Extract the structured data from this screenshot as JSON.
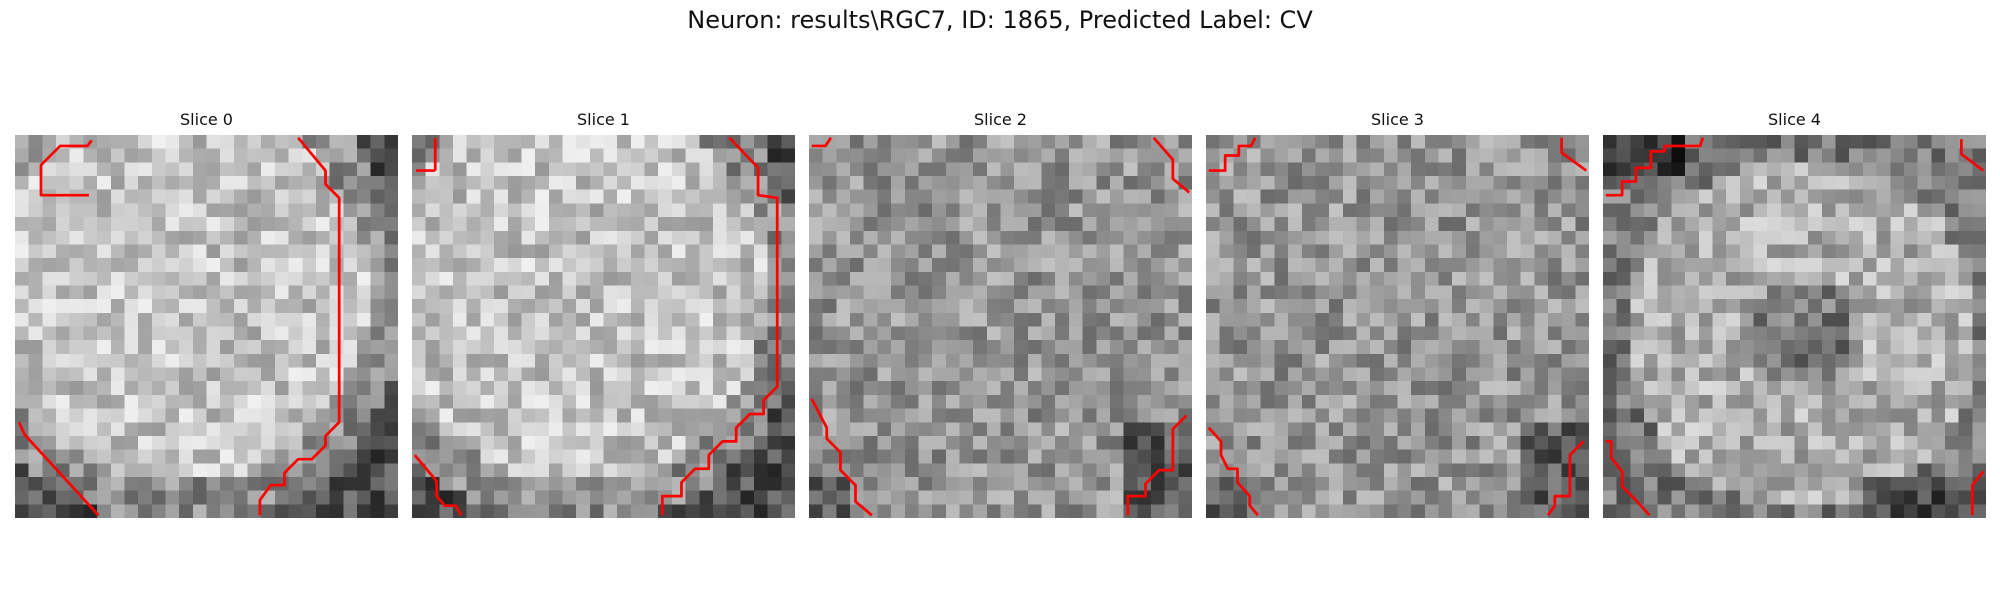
{
  "figure": {
    "title": "Neuron: results\\RGC7, ID: 1865, Predicted Label: CV",
    "colors": {
      "contour": "#ff0000",
      "background": "#ffffff"
    }
  },
  "slices": [
    {
      "title": "Slice 0",
      "grid_size": 28,
      "pixel_pattern": "bright-disc",
      "contours": [
        [
          [
            5.4,
            4.4
          ],
          [
            1.9,
            4.4
          ],
          [
            1.9,
            2.2
          ],
          [
            3.3,
            0.8
          ],
          [
            5.3,
            0.8
          ],
          [
            5.6,
            0.4
          ]
        ],
        [
          [
            20.7,
            0.2
          ],
          [
            22.7,
            2.6
          ],
          [
            22.7,
            3.6
          ],
          [
            23.7,
            4.6
          ],
          [
            23.7,
            21
          ],
          [
            22.7,
            22
          ],
          [
            22.7,
            22.7
          ],
          [
            21.7,
            23.7
          ],
          [
            20.7,
            23.7
          ],
          [
            19.7,
            24.7
          ],
          [
            19.7,
            25.6
          ],
          [
            18.7,
            25.6
          ],
          [
            17.9,
            26.7
          ],
          [
            17.9,
            27.8
          ]
        ],
        [
          [
            0.3,
            21
          ],
          [
            0.7,
            21.9
          ],
          [
            6.1,
            27.8
          ]
        ]
      ]
    },
    {
      "title": "Slice 1",
      "grid_size": 28,
      "pixel_pattern": "bright-disc",
      "contours": [
        [
          [
            1.7,
            2.6
          ],
          [
            1.7,
            0.2
          ]
        ],
        [
          [
            0.3,
            2.6
          ],
          [
            1.7,
            2.6
          ]
        ],
        [
          [
            23.2,
            0.2
          ],
          [
            25.3,
            2.4
          ],
          [
            25.3,
            4.4
          ],
          [
            26.7,
            4.6
          ],
          [
            26.7,
            18.4
          ],
          [
            25.7,
            19.4
          ],
          [
            25.7,
            20.4
          ],
          [
            24.7,
            20.4
          ],
          [
            23.7,
            21.4
          ],
          [
            23.7,
            22.4
          ],
          [
            22.7,
            22.4
          ],
          [
            21.7,
            23.4
          ],
          [
            21.7,
            24.4
          ],
          [
            20.7,
            24.4
          ],
          [
            19.7,
            25.4
          ],
          [
            19.7,
            26.4
          ],
          [
            18.3,
            26.4
          ],
          [
            18.3,
            27.8
          ]
        ],
        [
          [
            0.2,
            23.4
          ],
          [
            1.8,
            25.3
          ],
          [
            1.8,
            26.4
          ],
          [
            2.4,
            27.1
          ],
          [
            3.2,
            27.1
          ],
          [
            3.6,
            27.8
          ]
        ]
      ]
    },
    {
      "title": "Slice 2",
      "grid_size": 28,
      "pixel_pattern": "mottled",
      "contours": [
        [
          [
            0.2,
            0.8
          ],
          [
            1.2,
            0.8
          ],
          [
            1.6,
            0.2
          ]
        ],
        [
          [
            25.2,
            0.2
          ],
          [
            26.6,
            1.8
          ],
          [
            26.6,
            3.2
          ],
          [
            27.8,
            4.2
          ]
        ],
        [
          [
            0.2,
            19.3
          ],
          [
            1.3,
            21.4
          ],
          [
            1.3,
            22.2
          ],
          [
            2.3,
            23.2
          ],
          [
            2.3,
            24.5
          ],
          [
            3.4,
            25.6
          ],
          [
            3.4,
            26.8
          ],
          [
            4.6,
            27.8
          ]
        ],
        [
          [
            27.6,
            20.5
          ],
          [
            26.6,
            21.5
          ],
          [
            26.6,
            24.5
          ],
          [
            25.6,
            24.5
          ],
          [
            24.6,
            25.5
          ],
          [
            24.6,
            26.4
          ],
          [
            23.3,
            26.4
          ],
          [
            23.3,
            27.8
          ]
        ]
      ]
    },
    {
      "title": "Slice 3",
      "grid_size": 28,
      "pixel_pattern": "mottled",
      "contours": [
        [
          [
            0.2,
            2.6
          ],
          [
            1.4,
            2.6
          ],
          [
            1.4,
            1.5
          ],
          [
            2.4,
            1.5
          ],
          [
            2.4,
            0.8
          ],
          [
            3.3,
            0.8
          ],
          [
            3.6,
            0.2
          ]
        ],
        [
          [
            26,
            0.2
          ],
          [
            26,
            1.3
          ],
          [
            27.8,
            2.6
          ]
        ],
        [
          [
            0.2,
            21.4
          ],
          [
            1.1,
            22.4
          ],
          [
            1.1,
            23.4
          ],
          [
            1.6,
            24.4
          ],
          [
            2.3,
            24.4
          ],
          [
            2.3,
            25.4
          ],
          [
            3.2,
            26.4
          ],
          [
            3.2,
            27.1
          ],
          [
            3.8,
            27.8
          ]
        ],
        [
          [
            27.6,
            22.4
          ],
          [
            26.6,
            23.4
          ],
          [
            26.6,
            26.4
          ],
          [
            25.5,
            26.4
          ],
          [
            25.5,
            27.1
          ],
          [
            25,
            27.8
          ]
        ]
      ]
    },
    {
      "title": "Slice 4",
      "grid_size": 28,
      "pixel_pattern": "dark-ring",
      "contours": [
        [
          [
            0.2,
            4.4
          ],
          [
            1.4,
            4.4
          ],
          [
            1.4,
            3.4
          ],
          [
            2.4,
            3.4
          ],
          [
            2.4,
            2.4
          ],
          [
            3.5,
            2.4
          ],
          [
            3.5,
            1.2
          ],
          [
            4.5,
            1.2
          ],
          [
            4.5,
            0.8
          ],
          [
            7.1,
            0.8
          ],
          [
            7.3,
            0.2
          ]
        ],
        [
          [
            26.2,
            0.3
          ],
          [
            26.2,
            1.4
          ],
          [
            27.8,
            2.6
          ]
        ],
        [
          [
            0.2,
            22.4
          ],
          [
            0.6,
            22.4
          ],
          [
            0.6,
            23.6
          ],
          [
            1.4,
            24.6
          ],
          [
            1.4,
            25.7
          ],
          [
            2.4,
            26.7
          ],
          [
            3.4,
            27.8
          ]
        ],
        [
          [
            27.8,
            24.6
          ],
          [
            27,
            25.6
          ],
          [
            27,
            27.8
          ]
        ]
      ]
    }
  ]
}
